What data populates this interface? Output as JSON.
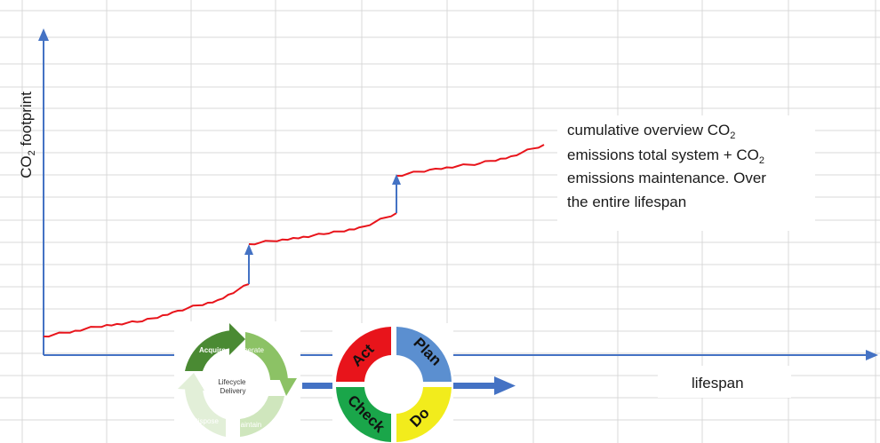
{
  "axes": {
    "y_label_main": "CO",
    "y_label_sub": "2",
    "y_label_rest": " footprint",
    "x_label": "lifespan"
  },
  "annotation": {
    "line1_a": "cumulative overview CO",
    "line1_sub": "2",
    "line2_a": "emissions total system + CO",
    "line2_sub": "2",
    "line3": "emissions maintenance. Over",
    "line4": "the entire lifespan"
  },
  "lifecycle": {
    "center_line1": "Lifecycle",
    "center_line2": "Delivery",
    "acquire": "Acquire",
    "operate": "Operate",
    "maintain": "Maintain",
    "dispose": "Dispose"
  },
  "pdca": {
    "plan": "Plan",
    "do": "Do",
    "check": "Check",
    "act": "Act"
  },
  "colors": {
    "axis": "#4472c4",
    "line": "#e8141b",
    "grid": "#d9d9d9",
    "plan": "#5b8fd0",
    "do": "#f2ec1c",
    "check": "#1aa64a",
    "act": "#e8141b",
    "lifecycle_dark": "#4a8a33",
    "lifecycle_mid": "#8cc265",
    "lifecycle_light": "#cfe6bd"
  }
}
